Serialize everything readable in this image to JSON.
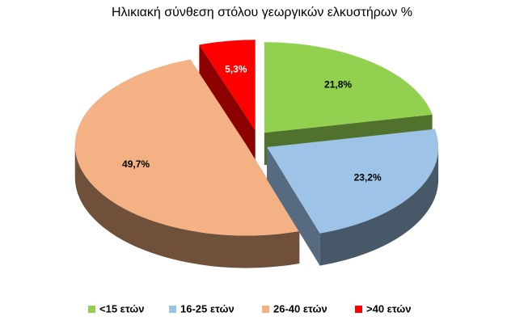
{
  "chart_data": {
    "type": "pie",
    "title": "Ηλικιακή σύνθεση στόλου γεωργικών ελκυστήρων %",
    "categories": [
      "<15 ετών",
      "16-25 ετών",
      "26-40 ετών",
      ">40 ετών"
    ],
    "values": [
      21.8,
      23.2,
      49.7,
      5.3
    ],
    "value_labels": [
      "21,8%",
      "23,2%",
      "49,7%",
      "5,3%"
    ],
    "colors": [
      "#92d050",
      "#9dc3e6",
      "#f4b183",
      "#ff0000"
    ],
    "legend": "bottom"
  }
}
